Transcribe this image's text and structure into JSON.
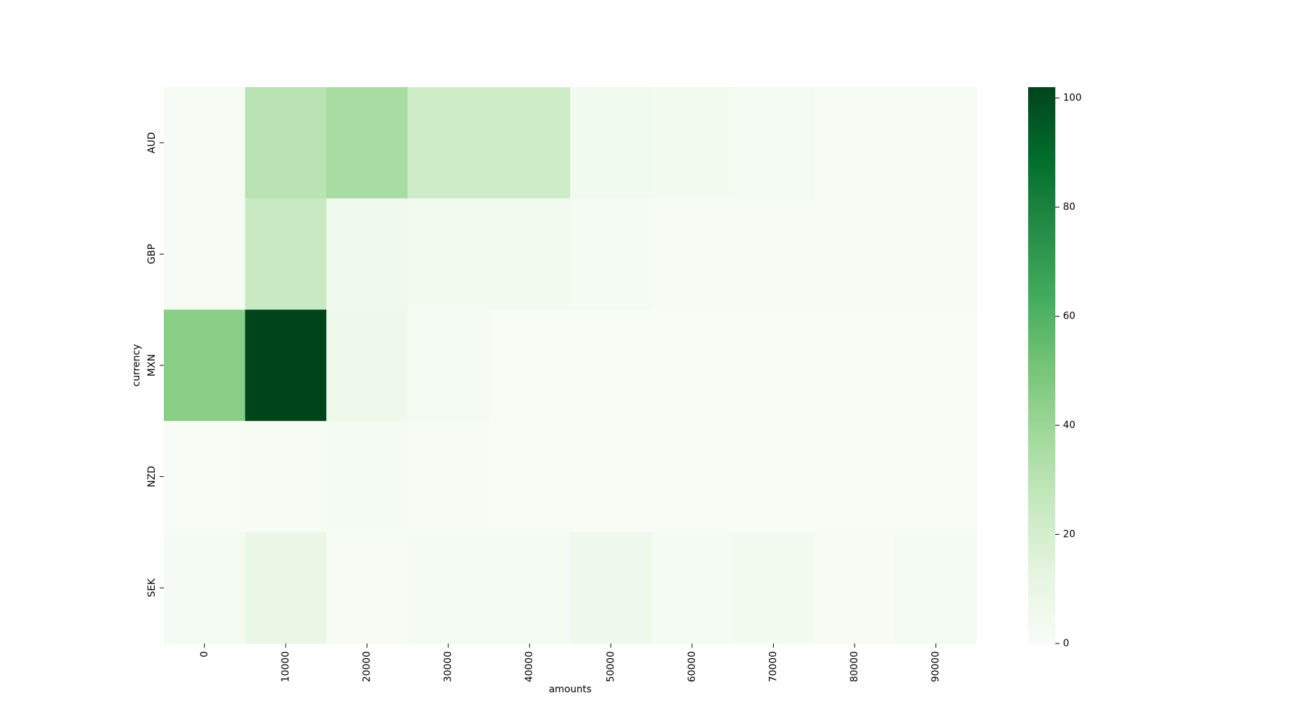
{
  "chart_data": {
    "type": "heatmap",
    "title": "",
    "xlabel": "amounts",
    "ylabel": "currency",
    "x_categories": [
      "0",
      "10000",
      "20000",
      "30000",
      "40000",
      "50000",
      "60000",
      "70000",
      "80000",
      "90000"
    ],
    "y_categories": [
      "AUD",
      "GBP",
      "MXN",
      "NZD",
      "SEK"
    ],
    "values": [
      [
        1,
        30,
        36,
        22,
        22,
        4,
        3,
        2,
        1,
        1
      ],
      [
        1,
        25,
        5,
        3,
        3,
        2,
        1,
        1,
        1,
        1
      ],
      [
        45,
        102,
        6,
        2,
        0,
        0,
        0,
        0,
        0,
        0
      ],
      [
        0,
        1,
        2,
        1,
        0,
        0,
        0,
        0,
        0,
        0
      ],
      [
        2,
        9,
        1,
        2,
        2,
        6,
        2,
        3,
        1,
        2
      ]
    ],
    "colormap": "Greens",
    "colorbar": {
      "vmin": 0,
      "vmax": 102,
      "ticks": [
        "0",
        "20",
        "40",
        "60",
        "80",
        "100"
      ]
    },
    "colors": {
      "low": "#f7fcf5",
      "high": "#00441b"
    }
  }
}
